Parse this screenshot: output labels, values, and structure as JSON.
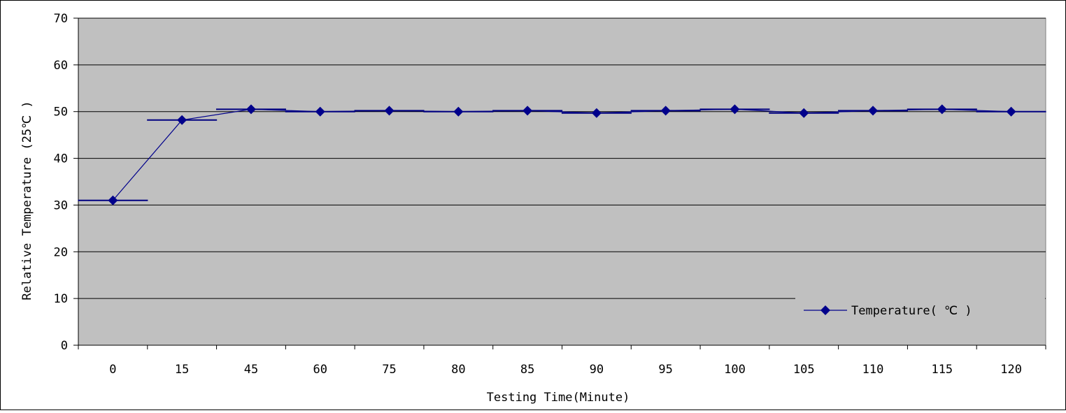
{
  "chart_data": {
    "type": "line",
    "title": "",
    "xlabel": "Testing Time(Minute)",
    "ylabel": "Relative Temperature (25℃ )",
    "categories": [
      "0",
      "15",
      "45",
      "60",
      "75",
      "80",
      "85",
      "90",
      "95",
      "100",
      "105",
      "110",
      "115",
      "120"
    ],
    "series": [
      {
        "name": "Temperature( ℃ )",
        "values": [
          31,
          48.2,
          50.5,
          50,
          50.2,
          50,
          50.2,
          49.7,
          50.2,
          50.5,
          49.7,
          50.2,
          50.5,
          50
        ],
        "color": "#00008b"
      }
    ],
    "ylim": [
      0,
      70
    ],
    "yticks": [
      0,
      10,
      20,
      30,
      40,
      50,
      60,
      70
    ],
    "grid": true,
    "legend_position": "bottom-right",
    "plot_background": "#c0c0c0"
  }
}
